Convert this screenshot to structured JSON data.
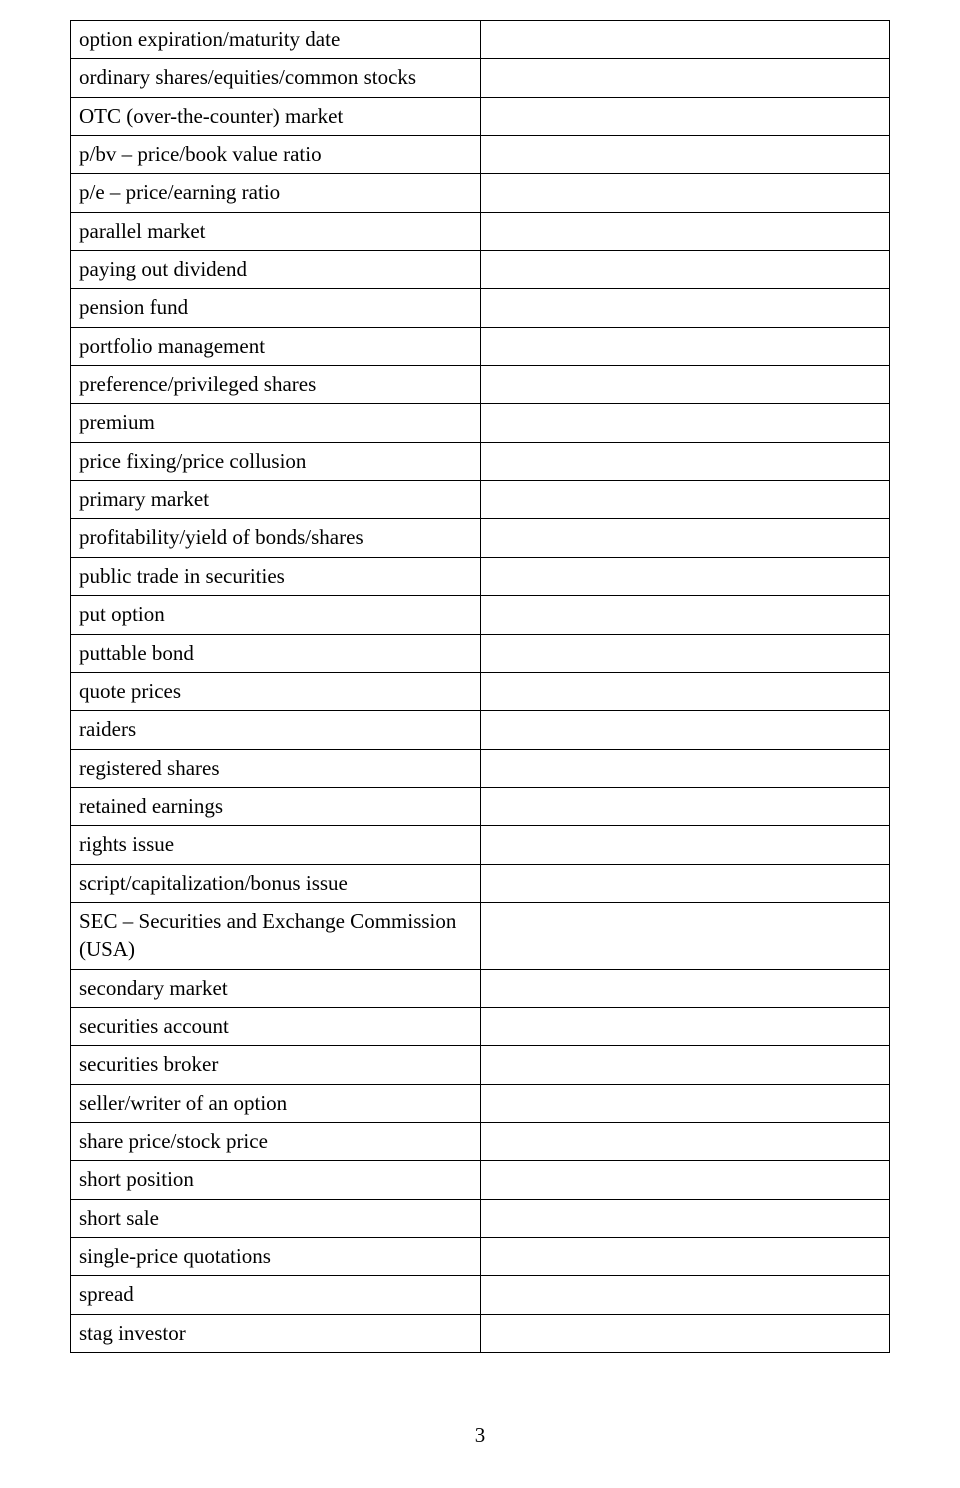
{
  "table": {
    "border_color": "#000000",
    "background_color": "#ffffff",
    "font_family": "Times New Roman",
    "font_size_pt": 16,
    "columns": [
      "term",
      "definition"
    ],
    "col_widths_pct": [
      50,
      50
    ],
    "rows": [
      {
        "term": "option expiration/maturity date",
        "definition": ""
      },
      {
        "term": "ordinary shares/equities/common stocks",
        "definition": ""
      },
      {
        "term": "OTC (over-the-counter) market",
        "definition": ""
      },
      {
        "term": "p/bv – price/book value ratio",
        "definition": ""
      },
      {
        "term": "p/e – price/earning ratio",
        "definition": ""
      },
      {
        "term": "parallel market",
        "definition": ""
      },
      {
        "term": "paying out dividend",
        "definition": ""
      },
      {
        "term": "pension fund",
        "definition": ""
      },
      {
        "term": "portfolio management",
        "definition": ""
      },
      {
        "term": "preference/privileged shares",
        "definition": ""
      },
      {
        "term": "premium",
        "definition": ""
      },
      {
        "term": "price fixing/price collusion",
        "definition": ""
      },
      {
        "term": "primary market",
        "definition": ""
      },
      {
        "term": "profitability/yield of bonds/shares",
        "definition": ""
      },
      {
        "term": "public trade in securities",
        "definition": ""
      },
      {
        "term": "put option",
        "definition": ""
      },
      {
        "term": "puttable bond",
        "definition": ""
      },
      {
        "term": "quote prices",
        "definition": ""
      },
      {
        "term": "raiders",
        "definition": ""
      },
      {
        "term": "registered shares",
        "definition": ""
      },
      {
        "term": "retained earnings",
        "definition": ""
      },
      {
        "term": "rights issue",
        "definition": ""
      },
      {
        "term": "script/capitalization/bonus issue",
        "definition": ""
      },
      {
        "term": "SEC – Securities and Exchange Commission (USA)",
        "definition": ""
      },
      {
        "term": "secondary market",
        "definition": ""
      },
      {
        "term": "securities account",
        "definition": ""
      },
      {
        "term": "securities broker",
        "definition": ""
      },
      {
        "term": "seller/writer of an option",
        "definition": ""
      },
      {
        "term": "share price/stock price",
        "definition": ""
      },
      {
        "term": "short position",
        "definition": ""
      },
      {
        "term": "short sale",
        "definition": ""
      },
      {
        "term": "single-price quotations",
        "definition": ""
      },
      {
        "term": "spread",
        "definition": ""
      },
      {
        "term": "stag investor",
        "definition": ""
      }
    ]
  },
  "page_number": "3"
}
